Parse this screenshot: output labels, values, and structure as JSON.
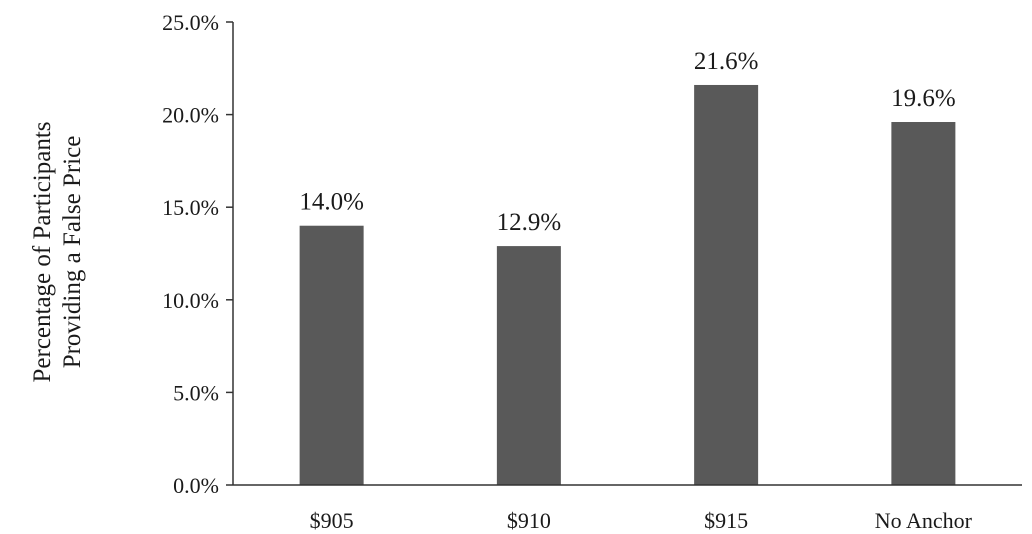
{
  "chart_data": {
    "type": "bar",
    "categories": [
      "$905",
      "$910",
      "$915",
      "No Anchor"
    ],
    "values": [
      14.0,
      12.9,
      21.6,
      19.6
    ],
    "data_labels": [
      "14.0%",
      "12.9%",
      "21.6%",
      "19.6%"
    ],
    "title": "",
    "xlabel": "",
    "ylabel_lines": [
      "Percentage of Participants",
      "Providing a False Price"
    ],
    "ylim": [
      0,
      25
    ],
    "yticks": [
      0,
      5,
      10,
      15,
      20,
      25
    ],
    "ytick_labels": [
      "0.0%",
      "5.0%",
      "10.0%",
      "15.0%",
      "20.0%",
      "25.0%"
    ],
    "grid": false,
    "legend": "none",
    "bar_color": "#595959"
  }
}
